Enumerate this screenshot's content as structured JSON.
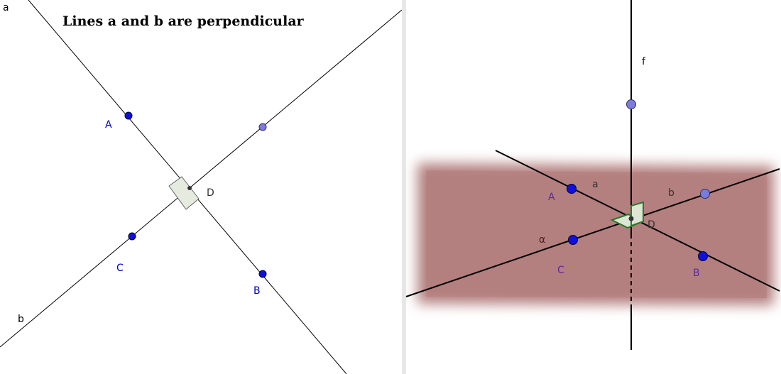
{
  "left_view": {
    "title": "Lines a and b are perpendicular",
    "line_a": "a",
    "line_b": "b",
    "point_A": "A",
    "point_B": "B",
    "point_C": "C",
    "point_D": "D"
  },
  "right_view": {
    "line_f": "f",
    "line_a": "a",
    "line_b": "b",
    "point_A": "A",
    "point_B": "B",
    "point_C": "C",
    "point_D": "D",
    "plane": "α"
  }
}
